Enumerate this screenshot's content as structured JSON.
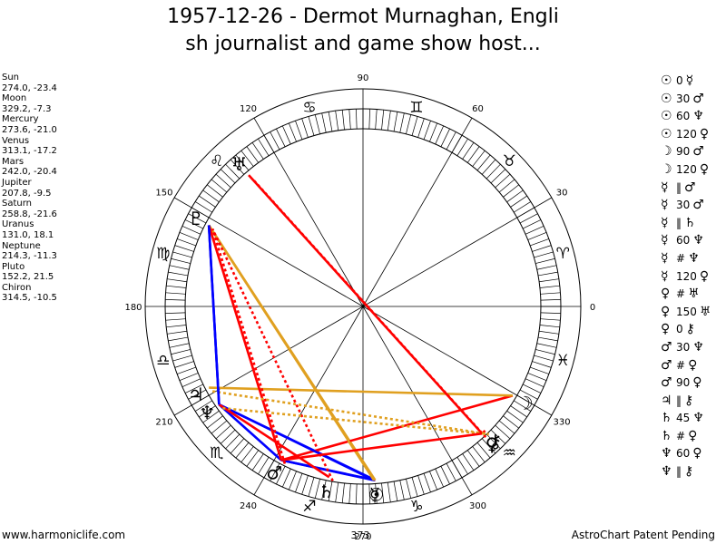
{
  "title": {
    "line1": "1957-12-26 - Dermot Murnaghan, Engli",
    "line2": "sh journalist and game show host..."
  },
  "planets": [
    {
      "name": "Sun",
      "coords": "274.0, -23.4"
    },
    {
      "name": "Moon",
      "coords": "329.2, -7.3"
    },
    {
      "name": "Mercury",
      "coords": "273.6, -21.0"
    },
    {
      "name": "Venus",
      "coords": "313.1, -17.2"
    },
    {
      "name": "Mars",
      "coords": "242.0, -20.4"
    },
    {
      "name": "Jupiter",
      "coords": "207.8, -9.5"
    },
    {
      "name": "Saturn",
      "coords": "258.8, -21.6"
    },
    {
      "name": "Uranus",
      "coords": "131.0, 18.1"
    },
    {
      "name": "Neptune",
      "coords": "214.3, -11.3"
    },
    {
      "name": "Pluto",
      "coords": "152.2, 21.5"
    },
    {
      "name": "Chiron",
      "coords": "314.5, -10.5"
    }
  ],
  "aspects": [
    {
      "p1": "☉",
      "asp": "0",
      "p2": "☿"
    },
    {
      "p1": "☉",
      "asp": "30",
      "p2": "♂"
    },
    {
      "p1": "☉",
      "asp": "60",
      "p2": "♆"
    },
    {
      "p1": "☉",
      "asp": "120",
      "p2": "♀"
    },
    {
      "p1": "☽",
      "asp": "90",
      "p2": "♂"
    },
    {
      "p1": "☽",
      "asp": "120",
      "p2": "♀"
    },
    {
      "p1": "☿",
      "asp": "‖",
      "p2": "♂"
    },
    {
      "p1": "☿",
      "asp": "30",
      "p2": "♂"
    },
    {
      "p1": "☿",
      "asp": "‖",
      "p2": "♄"
    },
    {
      "p1": "☿",
      "asp": "60",
      "p2": "♆"
    },
    {
      "p1": "☿",
      "asp": "#",
      "p2": "♆"
    },
    {
      "p1": "☿",
      "asp": "120",
      "p2": "♀"
    },
    {
      "p1": "♀",
      "asp": "#",
      "p2": "♅"
    },
    {
      "p1": "♀",
      "asp": "150",
      "p2": "♅"
    },
    {
      "p1": "♀",
      "asp": "0",
      "p2": "⚷"
    },
    {
      "p1": "♂",
      "asp": "30",
      "p2": "♆"
    },
    {
      "p1": "♂",
      "asp": "#",
      "p2": "♀"
    },
    {
      "p1": "♂",
      "asp": "90",
      "p2": "♀"
    },
    {
      "p1": "♃",
      "asp": "‖",
      "p2": "⚷"
    },
    {
      "p1": "♄",
      "asp": "45",
      "p2": "♆"
    },
    {
      "p1": "♄",
      "asp": "#",
      "p2": "♀"
    },
    {
      "p1": "♆",
      "asp": "60",
      "p2": "♀"
    },
    {
      "p1": "♆",
      "asp": "‖",
      "p2": "⚷"
    }
  ],
  "wheel": {
    "angle_labels": [
      "0",
      "30",
      "60",
      "90",
      "120",
      "150",
      "180",
      "210",
      "240",
      "270",
      "300",
      "330"
    ],
    "signs": [
      "♈",
      "♉",
      "♊",
      "♋",
      "♌",
      "♍",
      "♎",
      "♏",
      "♐",
      "♑",
      "♒",
      "♓"
    ],
    "chart_glyphs": [
      {
        "glyph": "☉",
        "deg": 274.0
      },
      {
        "glyph": "☽",
        "deg": 329.2
      },
      {
        "glyph": "☿",
        "deg": 273.6
      },
      {
        "glyph": "♀",
        "deg": 313.1
      },
      {
        "glyph": "♂",
        "deg": 242.0
      },
      {
        "glyph": "♃",
        "deg": 207.8
      },
      {
        "glyph": "♄",
        "deg": 258.8
      },
      {
        "glyph": "♅",
        "deg": 131.0
      },
      {
        "glyph": "♆",
        "deg": 214.3
      },
      {
        "glyph": "♇",
        "deg": 152.2
      },
      {
        "glyph": "⚷",
        "deg": 314.5
      }
    ],
    "extra_labels": [
      "373"
    ],
    "aspect_lines": [
      {
        "from": 274.0,
        "to": 273.6,
        "color": "#ff0000",
        "dash": false
      },
      {
        "from": 274.0,
        "to": 242.0,
        "color": "#0000ff",
        "dash": false
      },
      {
        "from": 274.0,
        "to": 214.3,
        "color": "#0000ff",
        "dash": false
      },
      {
        "from": 274.0,
        "to": 152.2,
        "color": "#e0a020",
        "dash": false
      },
      {
        "from": 329.2,
        "to": 242.0,
        "color": "#ff0000",
        "dash": false
      },
      {
        "from": 329.2,
        "to": 207.8,
        "color": "#e0a020",
        "dash": false
      },
      {
        "from": 273.6,
        "to": 242.0,
        "color": "#0000ff",
        "dash": false
      },
      {
        "from": 273.6,
        "to": 214.3,
        "color": "#0000ff",
        "dash": false
      },
      {
        "from": 273.6,
        "to": 152.2,
        "color": "#e0a020",
        "dash": false
      },
      {
        "from": 313.1,
        "to": 131.0,
        "color": "#ff0000",
        "dash": false
      },
      {
        "from": 313.1,
        "to": 131.0,
        "color": "#ff0000",
        "dash": true
      },
      {
        "from": 313.1,
        "to": 314.5,
        "color": "#ff0000",
        "dash": false
      },
      {
        "from": 242.0,
        "to": 214.3,
        "color": "#0000ff",
        "dash": false
      },
      {
        "from": 242.0,
        "to": 152.2,
        "color": "#ff0000",
        "dash": false
      },
      {
        "from": 242.0,
        "to": 152.2,
        "color": "#ff0000",
        "dash": true
      },
      {
        "from": 207.8,
        "to": 314.5,
        "color": "#e0a020",
        "dash": true
      },
      {
        "from": 258.8,
        "to": 214.3,
        "color": "#ff0000",
        "dash": false
      },
      {
        "from": 258.8,
        "to": 152.2,
        "color": "#ff0000",
        "dash": true
      },
      {
        "from": 214.3,
        "to": 152.2,
        "color": "#0000ff",
        "dash": false
      },
      {
        "from": 214.3,
        "to": 314.5,
        "color": "#e0a020",
        "dash": true
      },
      {
        "from": 242.0,
        "to": 313.1,
        "color": "#ff0000",
        "dash": false
      },
      {
        "from": 152.2,
        "to": 214.3,
        "color": "#0000ff",
        "dash": false
      }
    ]
  },
  "footer": {
    "left": "www.harmoniclife.com",
    "right": "AstroChart Patent Pending"
  },
  "colors": {
    "red": "#ff0000",
    "blue": "#0000ff",
    "gold": "#e0a020"
  }
}
